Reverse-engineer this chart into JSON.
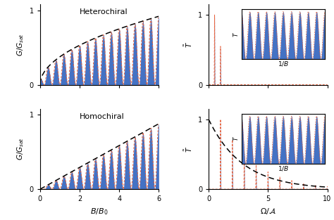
{
  "fig_width": 4.74,
  "fig_height": 3.13,
  "dpi": 100,
  "blue_color": "#4472C4",
  "orange_color": "#E8603A",
  "B_max": 6.0,
  "Omega_max": 10.0,
  "heterochiral_label": "Heterochiral",
  "homochiral_label": "Homochiral",
  "ylabel_left": "$G/G_{sat}$",
  "ylabel_right": "$\\tilde{T}$",
  "xlabel_left": "$B/B_0$",
  "xlabel_right": "$\\Omega/\\mathcal{A}$",
  "inset_xlabel": "$1/B$",
  "inset_ylabel": "$T$",
  "yticks_left": [
    0,
    1
  ],
  "yticks_right": [
    0,
    1
  ],
  "xticks_left": [
    0,
    2,
    4,
    6
  ],
  "xticks_right": [
    0,
    5,
    10
  ],
  "freq_B": 2.5,
  "hetero_envelope_scale": 0.55,
  "homo_envelope_scale": 0.18,
  "omega_peak1": 0.5,
  "omega_peak2": 1.0,
  "omega_peak_sigma": 0.012,
  "homo_omega_freq": 1.0,
  "homo_omega_decay": 0.35
}
